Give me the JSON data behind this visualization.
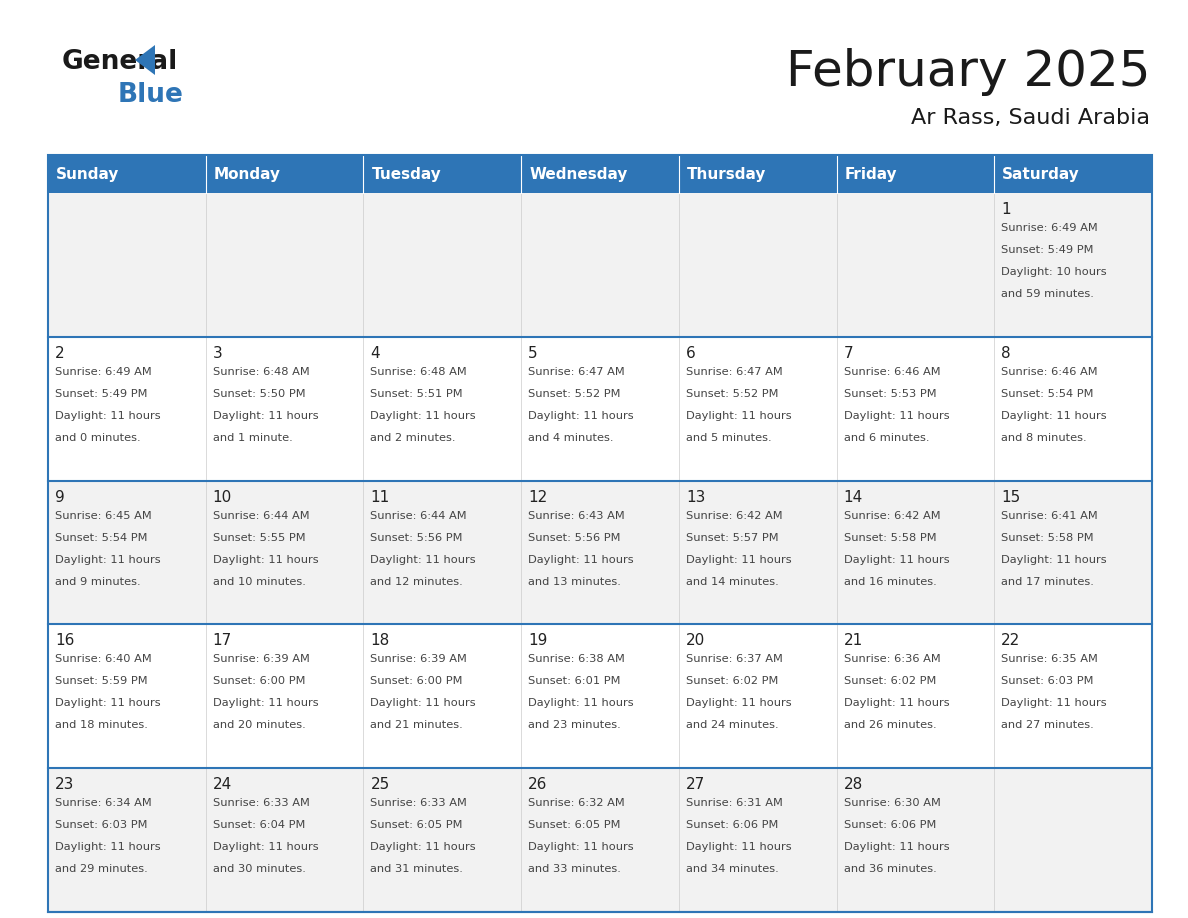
{
  "title": "February 2025",
  "subtitle": "Ar Rass, Saudi Arabia",
  "header_bg": "#2e75b6",
  "header_text_color": "#ffffff",
  "border_color": "#2e75b6",
  "text_color": "#333333",
  "days_of_week": [
    "Sunday",
    "Monday",
    "Tuesday",
    "Wednesday",
    "Thursday",
    "Friday",
    "Saturday"
  ],
  "calendar_data": [
    [
      null,
      null,
      null,
      null,
      null,
      null,
      {
        "day": "1",
        "sunrise": "6:49 AM",
        "sunset": "5:49 PM",
        "daylight_line1": "Daylight: 10 hours",
        "daylight_line2": "and 59 minutes."
      }
    ],
    [
      {
        "day": "2",
        "sunrise": "6:49 AM",
        "sunset": "5:49 PM",
        "daylight_line1": "Daylight: 11 hours",
        "daylight_line2": "and 0 minutes."
      },
      {
        "day": "3",
        "sunrise": "6:48 AM",
        "sunset": "5:50 PM",
        "daylight_line1": "Daylight: 11 hours",
        "daylight_line2": "and 1 minute."
      },
      {
        "day": "4",
        "sunrise": "6:48 AM",
        "sunset": "5:51 PM",
        "daylight_line1": "Daylight: 11 hours",
        "daylight_line2": "and 2 minutes."
      },
      {
        "day": "5",
        "sunrise": "6:47 AM",
        "sunset": "5:52 PM",
        "daylight_line1": "Daylight: 11 hours",
        "daylight_line2": "and 4 minutes."
      },
      {
        "day": "6",
        "sunrise": "6:47 AM",
        "sunset": "5:52 PM",
        "daylight_line1": "Daylight: 11 hours",
        "daylight_line2": "and 5 minutes."
      },
      {
        "day": "7",
        "sunrise": "6:46 AM",
        "sunset": "5:53 PM",
        "daylight_line1": "Daylight: 11 hours",
        "daylight_line2": "and 6 minutes."
      },
      {
        "day": "8",
        "sunrise": "6:46 AM",
        "sunset": "5:54 PM",
        "daylight_line1": "Daylight: 11 hours",
        "daylight_line2": "and 8 minutes."
      }
    ],
    [
      {
        "day": "9",
        "sunrise": "6:45 AM",
        "sunset": "5:54 PM",
        "daylight_line1": "Daylight: 11 hours",
        "daylight_line2": "and 9 minutes."
      },
      {
        "day": "10",
        "sunrise": "6:44 AM",
        "sunset": "5:55 PM",
        "daylight_line1": "Daylight: 11 hours",
        "daylight_line2": "and 10 minutes."
      },
      {
        "day": "11",
        "sunrise": "6:44 AM",
        "sunset": "5:56 PM",
        "daylight_line1": "Daylight: 11 hours",
        "daylight_line2": "and 12 minutes."
      },
      {
        "day": "12",
        "sunrise": "6:43 AM",
        "sunset": "5:56 PM",
        "daylight_line1": "Daylight: 11 hours",
        "daylight_line2": "and 13 minutes."
      },
      {
        "day": "13",
        "sunrise": "6:42 AM",
        "sunset": "5:57 PM",
        "daylight_line1": "Daylight: 11 hours",
        "daylight_line2": "and 14 minutes."
      },
      {
        "day": "14",
        "sunrise": "6:42 AM",
        "sunset": "5:58 PM",
        "daylight_line1": "Daylight: 11 hours",
        "daylight_line2": "and 16 minutes."
      },
      {
        "day": "15",
        "sunrise": "6:41 AM",
        "sunset": "5:58 PM",
        "daylight_line1": "Daylight: 11 hours",
        "daylight_line2": "and 17 minutes."
      }
    ],
    [
      {
        "day": "16",
        "sunrise": "6:40 AM",
        "sunset": "5:59 PM",
        "daylight_line1": "Daylight: 11 hours",
        "daylight_line2": "and 18 minutes."
      },
      {
        "day": "17",
        "sunrise": "6:39 AM",
        "sunset": "6:00 PM",
        "daylight_line1": "Daylight: 11 hours",
        "daylight_line2": "and 20 minutes."
      },
      {
        "day": "18",
        "sunrise": "6:39 AM",
        "sunset": "6:00 PM",
        "daylight_line1": "Daylight: 11 hours",
        "daylight_line2": "and 21 minutes."
      },
      {
        "day": "19",
        "sunrise": "6:38 AM",
        "sunset": "6:01 PM",
        "daylight_line1": "Daylight: 11 hours",
        "daylight_line2": "and 23 minutes."
      },
      {
        "day": "20",
        "sunrise": "6:37 AM",
        "sunset": "6:02 PM",
        "daylight_line1": "Daylight: 11 hours",
        "daylight_line2": "and 24 minutes."
      },
      {
        "day": "21",
        "sunrise": "6:36 AM",
        "sunset": "6:02 PM",
        "daylight_line1": "Daylight: 11 hours",
        "daylight_line2": "and 26 minutes."
      },
      {
        "day": "22",
        "sunrise": "6:35 AM",
        "sunset": "6:03 PM",
        "daylight_line1": "Daylight: 11 hours",
        "daylight_line2": "and 27 minutes."
      }
    ],
    [
      {
        "day": "23",
        "sunrise": "6:34 AM",
        "sunset": "6:03 PM",
        "daylight_line1": "Daylight: 11 hours",
        "daylight_line2": "and 29 minutes."
      },
      {
        "day": "24",
        "sunrise": "6:33 AM",
        "sunset": "6:04 PM",
        "daylight_line1": "Daylight: 11 hours",
        "daylight_line2": "and 30 minutes."
      },
      {
        "day": "25",
        "sunrise": "6:33 AM",
        "sunset": "6:05 PM",
        "daylight_line1": "Daylight: 11 hours",
        "daylight_line2": "and 31 minutes."
      },
      {
        "day": "26",
        "sunrise": "6:32 AM",
        "sunset": "6:05 PM",
        "daylight_line1": "Daylight: 11 hours",
        "daylight_line2": "and 33 minutes."
      },
      {
        "day": "27",
        "sunrise": "6:31 AM",
        "sunset": "6:06 PM",
        "daylight_line1": "Daylight: 11 hours",
        "daylight_line2": "and 34 minutes."
      },
      {
        "day": "28",
        "sunrise": "6:30 AM",
        "sunset": "6:06 PM",
        "daylight_line1": "Daylight: 11 hours",
        "daylight_line2": "and 36 minutes."
      },
      null
    ]
  ]
}
